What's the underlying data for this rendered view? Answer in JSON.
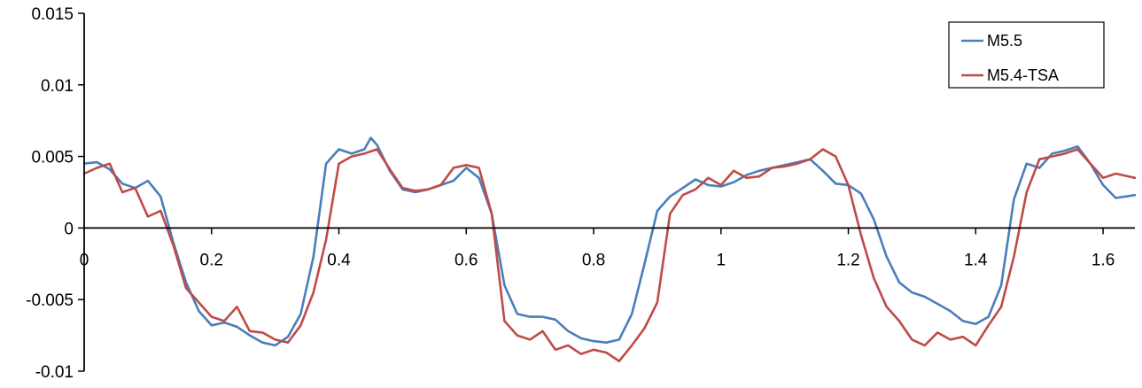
{
  "chart_data": {
    "type": "line",
    "title": "",
    "xlabel": "",
    "ylabel": "",
    "xlim": [
      0,
      1.65
    ],
    "ylim": [
      -0.01,
      0.015
    ],
    "x_ticks": [
      0.2,
      0.4,
      0.6,
      0.8,
      1,
      1.2,
      1.4,
      1.6
    ],
    "x_tick_labels": [
      "0.2",
      "0.4",
      "0.6",
      "0.8",
      "1",
      "1.2",
      "1.4",
      "1.6"
    ],
    "origin_label": "0",
    "y_ticks": [
      0.015,
      0.01,
      0.005,
      0,
      -0.005,
      -0.01
    ],
    "y_tick_labels": [
      "0.015",
      "0.01",
      "0.005",
      "0",
      "-0.005",
      "-0.01"
    ],
    "grid": false,
    "legend_position": "top-right",
    "series": [
      {
        "name": "M5.5",
        "color": "#4a7ebb",
        "x": [
          0,
          0.02,
          0.04,
          0.06,
          0.08,
          0.1,
          0.12,
          0.14,
          0.16,
          0.18,
          0.2,
          0.22,
          0.24,
          0.26,
          0.28,
          0.3,
          0.32,
          0.34,
          0.36,
          0.38,
          0.4,
          0.42,
          0.44,
          0.45,
          0.46,
          0.48,
          0.5,
          0.52,
          0.54,
          0.56,
          0.58,
          0.6,
          0.62,
          0.64,
          0.66,
          0.68,
          0.7,
          0.72,
          0.74,
          0.76,
          0.78,
          0.8,
          0.82,
          0.84,
          0.86,
          0.88,
          0.9,
          0.92,
          0.94,
          0.96,
          0.98,
          1,
          1.02,
          1.04,
          1.06,
          1.08,
          1.1,
          1.12,
          1.14,
          1.16,
          1.18,
          1.2,
          1.22,
          1.24,
          1.26,
          1.28,
          1.3,
          1.32,
          1.34,
          1.36,
          1.38,
          1.4,
          1.42,
          1.44,
          1.46,
          1.48,
          1.5,
          1.52,
          1.54,
          1.56,
          1.58,
          1.6,
          1.62,
          1.65
        ],
        "values": [
          0.0045,
          0.0046,
          0.0041,
          0.0031,
          0.0028,
          0.0033,
          0.0022,
          -0.001,
          -0.0038,
          -0.0058,
          -0.0068,
          -0.0066,
          -0.0069,
          -0.0075,
          -0.008,
          -0.0082,
          -0.0076,
          -0.006,
          -0.002,
          0.0045,
          0.0055,
          0.0052,
          0.0055,
          0.0063,
          0.0058,
          0.004,
          0.0027,
          0.0025,
          0.0027,
          0.003,
          0.0033,
          0.0042,
          0.0035,
          0.001,
          -0.004,
          -0.006,
          -0.0062,
          -0.0062,
          -0.0064,
          -0.0072,
          -0.0077,
          -0.0079,
          -0.008,
          -0.0078,
          -0.006,
          -0.0025,
          0.0012,
          0.0022,
          0.0028,
          0.0034,
          0.003,
          0.0029,
          0.0032,
          0.0037,
          0.004,
          0.0042,
          0.0044,
          0.0046,
          0.0048,
          0.004,
          0.0031,
          0.003,
          0.0024,
          0.0006,
          -0.002,
          -0.0038,
          -0.0045,
          -0.0048,
          -0.0053,
          -0.0058,
          -0.0065,
          -0.0067,
          -0.0062,
          -0.004,
          0.002,
          0.0045,
          0.0042,
          0.0052,
          0.0054,
          0.0057,
          0.0045,
          0.003,
          0.0021,
          0.0023
        ]
      },
      {
        "name": "M5.4-TSA",
        "color": "#be4b48",
        "x": [
          0,
          0.02,
          0.04,
          0.06,
          0.08,
          0.1,
          0.12,
          0.14,
          0.16,
          0.18,
          0.2,
          0.22,
          0.24,
          0.26,
          0.28,
          0.3,
          0.32,
          0.34,
          0.36,
          0.38,
          0.4,
          0.42,
          0.44,
          0.46,
          0.48,
          0.5,
          0.52,
          0.54,
          0.56,
          0.58,
          0.6,
          0.62,
          0.64,
          0.66,
          0.68,
          0.7,
          0.72,
          0.74,
          0.76,
          0.78,
          0.8,
          0.82,
          0.84,
          0.86,
          0.88,
          0.9,
          0.92,
          0.94,
          0.96,
          0.98,
          1,
          1.02,
          1.04,
          1.06,
          1.08,
          1.1,
          1.12,
          1.14,
          1.16,
          1.18,
          1.2,
          1.22,
          1.24,
          1.26,
          1.28,
          1.3,
          1.32,
          1.34,
          1.36,
          1.38,
          1.4,
          1.42,
          1.44,
          1.46,
          1.48,
          1.5,
          1.52,
          1.54,
          1.56,
          1.58,
          1.6,
          1.62,
          1.65
        ],
        "values": [
          0.0038,
          0.0042,
          0.0045,
          0.0025,
          0.0028,
          0.0008,
          0.0012,
          -0.0012,
          -0.0042,
          -0.0052,
          -0.0062,
          -0.0065,
          -0.0055,
          -0.0072,
          -0.0073,
          -0.0078,
          -0.008,
          -0.0068,
          -0.0045,
          -0.0008,
          0.0045,
          0.005,
          0.0052,
          0.0055,
          0.0041,
          0.0028,
          0.0026,
          0.0027,
          0.003,
          0.0042,
          0.0044,
          0.0042,
          0.001,
          -0.0065,
          -0.0075,
          -0.0078,
          -0.0072,
          -0.0085,
          -0.0082,
          -0.0088,
          -0.0085,
          -0.0087,
          -0.0093,
          -0.0082,
          -0.007,
          -0.0052,
          0.001,
          0.0023,
          0.0027,
          0.0035,
          0.003,
          0.004,
          0.0035,
          0.0036,
          0.0042,
          0.0043,
          0.0045,
          0.0048,
          0.0055,
          0.005,
          0.003,
          -0.0005,
          -0.0035,
          -0.0055,
          -0.0065,
          -0.0078,
          -0.0082,
          -0.0073,
          -0.0078,
          -0.0076,
          -0.0082,
          -0.0068,
          -0.0055,
          -0.002,
          0.0025,
          0.0048,
          0.005,
          0.0052,
          0.0055,
          0.0045,
          0.0035,
          0.0038,
          0.0035
        ]
      }
    ]
  }
}
